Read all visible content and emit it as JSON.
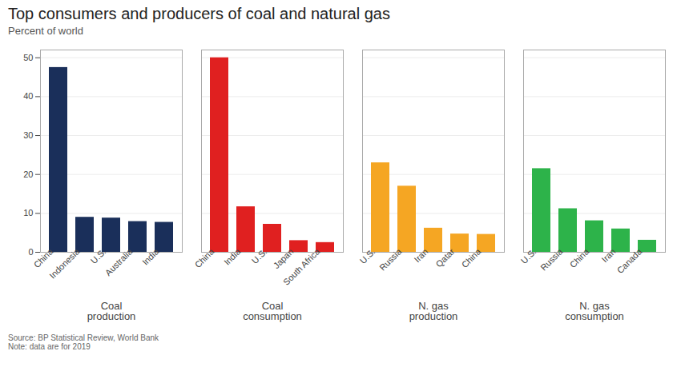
{
  "chart_data": {
    "type": "bar",
    "title": "Top consumers and producers of coal and natural gas",
    "subtitle": "Percent of world",
    "caption": "Source: BP Statistical Review, World Bank\nNote: data are for 2019",
    "series": [
      {
        "name": "Coal\nproduction",
        "color": "#1a2f5a",
        "categories": [
          "China",
          "Indonesia",
          "U.S.",
          "Australia",
          "India"
        ],
        "values": [
          47.5,
          9.0,
          8.8,
          7.9,
          7.7
        ]
      },
      {
        "name": "Coal\nconsumption",
        "color": "#e02020",
        "categories": [
          "China",
          "India",
          "U.S.",
          "Japan",
          "South Africa"
        ],
        "values": [
          50.0,
          11.7,
          7.2,
          3.0,
          2.5
        ]
      },
      {
        "name": "N. gas\nproduction",
        "color": "#f5a623",
        "categories": [
          "U.S.",
          "Russia",
          "Iran",
          "Qatar",
          "China"
        ],
        "values": [
          23.0,
          17.0,
          6.2,
          4.7,
          4.6
        ]
      },
      {
        "name": "N. gas\nconsumption",
        "color": "#2db34a",
        "categories": [
          "U.S.",
          "Russia",
          "China",
          "Iran",
          "Canada"
        ],
        "values": [
          21.5,
          11.2,
          8.1,
          6.0,
          3.1
        ]
      }
    ],
    "ylim": [
      0,
      52
    ],
    "yticks": [
      0,
      10,
      20,
      30,
      40,
      50
    ],
    "grid": true
  }
}
